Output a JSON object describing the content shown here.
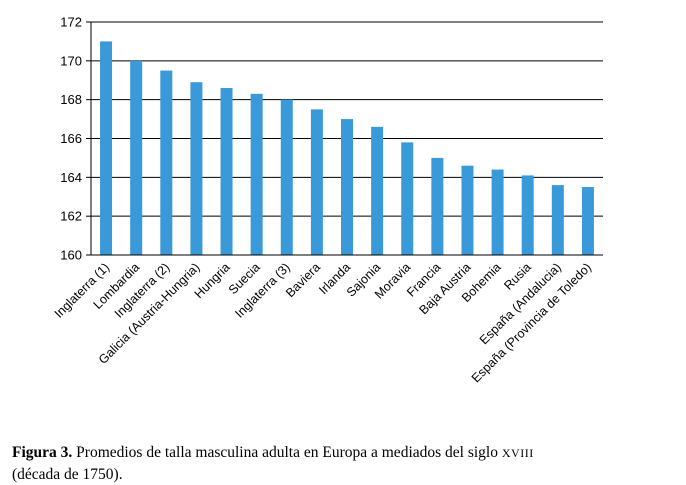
{
  "chart_data": {
    "type": "bar",
    "categories": [
      "Inglaterra (1)",
      "Lombardia",
      "Inglaterra (2)",
      "Galicia (Austria-Hungria)",
      "Hungria",
      "Suecia",
      "Inglaterra (3)",
      "Baviera",
      "Irlanda",
      "Sajonia",
      "Moravia",
      "Francia",
      "Baja Austria",
      "Bohemia",
      "Rusia",
      "España (Andalucia)",
      "España (Provincia de Toledo)"
    ],
    "values": [
      171.0,
      170.0,
      169.5,
      168.9,
      168.6,
      168.3,
      168.0,
      167.5,
      167.0,
      166.6,
      165.8,
      165.0,
      164.6,
      164.4,
      164.1,
      163.6,
      163.5
    ],
    "ylim": [
      160,
      172
    ],
    "yticks": [
      160,
      162,
      164,
      166,
      168,
      170,
      172
    ],
    "grid": true,
    "bar_color": "#3a9ad9"
  },
  "caption": {
    "label": "Figura 3.",
    "text_main": "Promedios de talla masculina adulta en Europa a mediados del siglo ",
    "century": "XVIII",
    "text_end": "(década de 1750)."
  }
}
